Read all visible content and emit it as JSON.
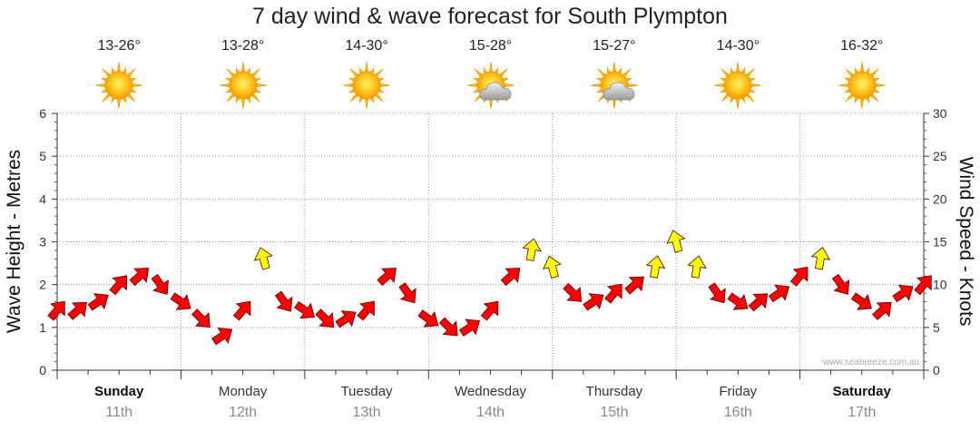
{
  "chart_data": {
    "type": "line",
    "title": "7 day wind & wave forecast for South Plympton",
    "ylabel_left": "Wave Height - Metres",
    "ylabel_right": "Wind Speed - Knots",
    "ylim_left": [
      0,
      6
    ],
    "ylim_right": [
      0,
      30
    ],
    "yticks_left": [
      "0",
      "1",
      "2",
      "3",
      "4",
      "5",
      "6"
    ],
    "yticks_right": [
      "0",
      "5",
      "10",
      "15",
      "20",
      "25",
      "30"
    ],
    "grid": true,
    "watermark": "www.seabreeze.com.au",
    "days": [
      {
        "name": "Sunday",
        "date": "11th",
        "bold": true,
        "temp": "13-26°",
        "icon": "sun"
      },
      {
        "name": "Monday",
        "date": "12th",
        "bold": false,
        "temp": "13-28°",
        "icon": "sun"
      },
      {
        "name": "Tuesday",
        "date": "13th",
        "bold": false,
        "temp": "14-30°",
        "icon": "sun"
      },
      {
        "name": "Wednesday",
        "date": "14th",
        "bold": false,
        "temp": "15-28°",
        "icon": "sun-cloud"
      },
      {
        "name": "Thursday",
        "date": "15th",
        "bold": false,
        "temp": "15-27°",
        "icon": "sun-cloud"
      },
      {
        "name": "Friday",
        "date": "16th",
        "bold": false,
        "temp": "14-30°",
        "icon": "sun"
      },
      {
        "name": "Saturday",
        "date": "17th",
        "bold": true,
        "temp": "16-32°",
        "icon": "sun"
      }
    ],
    "wind_series": {
      "name": "Wind Speed",
      "unit": "knots",
      "x_hours": [
        0,
        4,
        8,
        12,
        16,
        20,
        24,
        28,
        32,
        36,
        40,
        44,
        48,
        52,
        56,
        60,
        64,
        68,
        72,
        76,
        80,
        84,
        88,
        92,
        96,
        100,
        104,
        108,
        112,
        116,
        120,
        124,
        128,
        132,
        136,
        140,
        144,
        148,
        152,
        156,
        160,
        164,
        168
      ],
      "values": [
        7,
        7,
        8,
        10,
        11,
        10,
        8,
        6,
        4,
        7,
        13,
        8,
        7,
        6,
        6,
        7,
        11,
        9,
        6,
        5,
        5,
        7,
        11,
        14,
        12,
        9,
        8,
        9,
        10,
        12,
        15,
        12,
        9,
        8,
        8,
        9,
        11,
        13,
        10,
        8,
        7,
        9,
        10
      ],
      "colors": {
        "normal": "#ff0000",
        "strong": "#ffff00",
        "outline": "#550000"
      },
      "strong_threshold_knots": 12
    }
  }
}
